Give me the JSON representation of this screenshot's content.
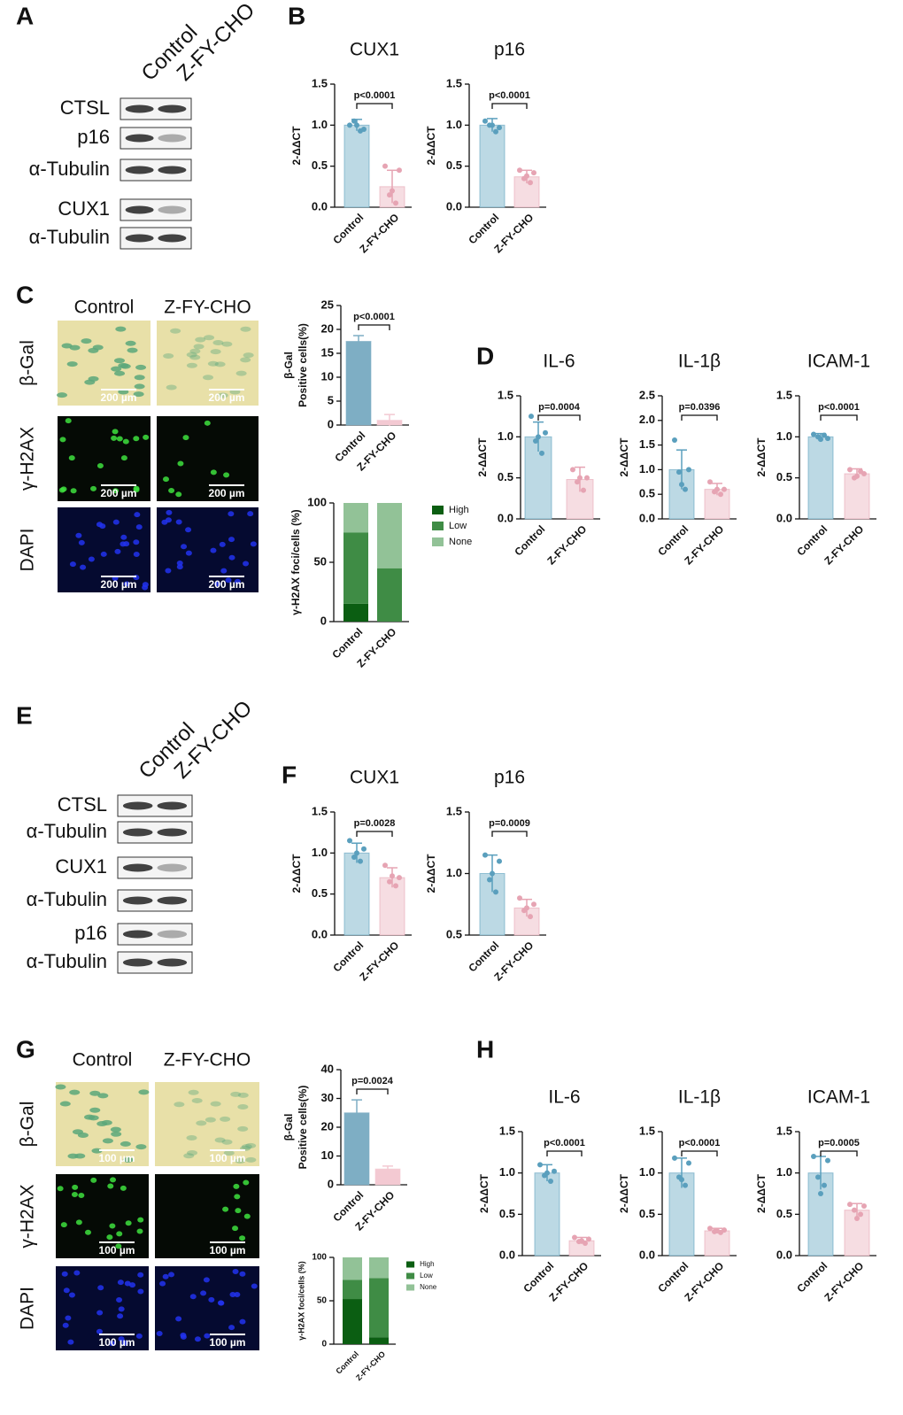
{
  "panel_labels": [
    "A",
    "B",
    "C",
    "D",
    "E",
    "F",
    "G",
    "H"
  ],
  "blots": [
    {
      "columns": [
        "Control",
        "Z-FY-CHO"
      ],
      "rows": [
        "CTSL",
        "p16",
        "α-Tubulin",
        "CUX1",
        "α-Tubulin"
      ]
    },
    {
      "columns": [
        "Control",
        "Z-FY-CHO"
      ],
      "rows": [
        "CTSL",
        "α-Tubulin",
        "CUX1",
        "α-Tubulin",
        "p16",
        "α-Tubulin"
      ]
    }
  ],
  "micrographs": [
    {
      "columns": [
        "Control",
        "Z-FY-CHO"
      ],
      "rows": [
        "β-Gal",
        "γ-H2AX",
        "DAPI"
      ],
      "scale_bar": "200 µm"
    },
    {
      "columns": [
        "Control",
        "Z-FY-CHO"
      ],
      "rows": [
        "β-Gal",
        "γ-H2AX",
        "DAPI"
      ],
      "scale_bar": "100 µm"
    }
  ],
  "chart_data": [
    {
      "type": "bar",
      "title": "CUX1",
      "ylabel": [
        "2-ΔΔCT"
      ],
      "categories": [
        "Control",
        "Z-FY-CHO"
      ],
      "values": [
        1.0,
        0.25
      ],
      "errors": [
        0.07,
        0.2
      ],
      "points": [
        [
          1.0,
          0.95,
          1.05,
          0.93,
          1.0
        ],
        [
          0.5,
          0.45,
          0.15,
          0.05,
          0.2
        ]
      ],
      "colors": [
        "#bcd9e4",
        "#f6dde2"
      ],
      "point_colors": [
        "#5a9fbd",
        "#e6a4b3"
      ],
      "ylim": [
        0,
        1.5
      ],
      "yticks": [
        {
          "value": 0,
          "label": "0.0"
        },
        0.5,
        {
          "value": 1,
          "label": "1.0"
        },
        1.5
      ],
      "annotation": "p<0.0001"
    },
    {
      "type": "bar",
      "title": "p16",
      "ylabel": [
        "2-ΔΔCT"
      ],
      "categories": [
        "Control",
        "Z-FY-CHO"
      ],
      "values": [
        1.0,
        0.37
      ],
      "errors": [
        0.08,
        0.08
      ],
      "points": [
        [
          1.05,
          0.97,
          1.0,
          0.92,
          1.0
        ],
        [
          0.45,
          0.42,
          0.35,
          0.3,
          0.38
        ]
      ],
      "colors": [
        "#bcd9e4",
        "#f6dde2"
      ],
      "point_colors": [
        "#5a9fbd",
        "#e6a4b3"
      ],
      "ylim": [
        0,
        1.5
      ],
      "yticks": [
        {
          "value": 0,
          "label": "0.0"
        },
        0.5,
        {
          "value": 1,
          "label": "1.0"
        },
        1.5
      ],
      "annotation": "p<0.0001"
    },
    {
      "type": "bar",
      "ylabel": [
        "β-Gal",
        "Positive cells(%)"
      ],
      "categories": [
        "Control",
        "Z-FY-CHO"
      ],
      "values": [
        17.5,
        1.0
      ],
      "errors": [
        1.2,
        1.2
      ],
      "colors": [
        "#7eaec4",
        "#f3c9d2"
      ],
      "ylim": [
        0,
        25
      ],
      "yticks": [
        0,
        5,
        10,
        15,
        20,
        25
      ],
      "annotation": "p<0.0001"
    },
    {
      "type": "stacked_bar",
      "ylabel": [
        "γ-H2AX foci/cells (%)"
      ],
      "categories": [
        "Control",
        "Z-FY-CHO"
      ],
      "series": [
        {
          "name": "High",
          "color": "#0b5e12",
          "values": [
            15,
            0
          ]
        },
        {
          "name": "Low",
          "color": "#3f8c45",
          "values": [
            60,
            45
          ]
        },
        {
          "name": "None",
          "color": "#92c297",
          "values": [
            25,
            55
          ]
        }
      ],
      "ylim": [
        0,
        100
      ],
      "yticks": [
        0,
        50,
        100
      ],
      "legend": "right"
    },
    {
      "type": "bar",
      "title": "IL-6",
      "ylabel": [
        "2-ΔΔCT"
      ],
      "categories": [
        "Control",
        "Z-FY-CHO"
      ],
      "values": [
        1.0,
        0.48
      ],
      "errors": [
        0.18,
        0.15
      ],
      "points": [
        [
          1.25,
          1.05,
          0.95,
          0.8,
          1.0
        ],
        [
          0.6,
          0.5,
          0.45,
          0.35,
          0.5
        ]
      ],
      "colors": [
        "#bcd9e4",
        "#f6dde2"
      ],
      "point_colors": [
        "#5a9fbd",
        "#e6a4b3"
      ],
      "ylim": [
        0,
        1.5
      ],
      "yticks": [
        {
          "value": 0,
          "label": "0.0"
        },
        0.5,
        {
          "value": 1,
          "label": "1.0"
        },
        1.5
      ],
      "annotation": "p=0.0004"
    },
    {
      "type": "bar",
      "title": "IL-1β",
      "ylabel": [
        "2-ΔΔCT"
      ],
      "categories": [
        "Control",
        "Z-FY-CHO"
      ],
      "values": [
        1.0,
        0.6
      ],
      "errors": [
        0.4,
        0.12
      ],
      "points": [
        [
          1.6,
          1.0,
          0.95,
          0.6,
          0.7
        ],
        [
          0.75,
          0.6,
          0.55,
          0.5,
          0.6
        ]
      ],
      "colors": [
        "#bcd9e4",
        "#f6dde2"
      ],
      "point_colors": [
        "#5a9fbd",
        "#e6a4b3"
      ],
      "ylim": [
        0,
        2.5
      ],
      "yticks": [
        {
          "value": 0,
          "label": "0.0"
        },
        0.5,
        {
          "value": 1,
          "label": "1.0"
        },
        1.5,
        {
          "value": 2,
          "label": "2.0"
        },
        2.5
      ],
      "annotation": "p=0.0396"
    },
    {
      "type": "bar",
      "title": "ICAM-1",
      "ylabel": [
        "2-ΔΔCT"
      ],
      "categories": [
        "Control",
        "Z-FY-CHO"
      ],
      "values": [
        1.0,
        0.55
      ],
      "errors": [
        0.04,
        0.06
      ],
      "points": [
        [
          1.03,
          0.98,
          1.0,
          1.02,
          0.97
        ],
        [
          0.6,
          0.55,
          0.5,
          0.58,
          0.52
        ]
      ],
      "colors": [
        "#bcd9e4",
        "#f6dde2"
      ],
      "point_colors": [
        "#5a9fbd",
        "#e6a4b3"
      ],
      "ylim": [
        0,
        1.5
      ],
      "yticks": [
        {
          "value": 0,
          "label": "0.0"
        },
        0.5,
        {
          "value": 1,
          "label": "1.0"
        },
        1.5
      ],
      "annotation": "p<0.0001"
    },
    {
      "type": "bar",
      "title": "CUX1",
      "ylabel": [
        "2-ΔΔCT"
      ],
      "categories": [
        "Control",
        "Z-FY-CHO"
      ],
      "values": [
        1.0,
        0.7
      ],
      "errors": [
        0.12,
        0.12
      ],
      "points": [
        [
          1.15,
          1.05,
          0.95,
          0.9,
          1.0
        ],
        [
          0.85,
          0.7,
          0.65,
          0.6,
          0.72
        ]
      ],
      "colors": [
        "#bcd9e4",
        "#f6dde2"
      ],
      "point_colors": [
        "#5a9fbd",
        "#e6a4b3"
      ],
      "ylim": [
        0,
        1.5
      ],
      "yticks": [
        {
          "value": 0,
          "label": "0.0"
        },
        0.5,
        {
          "value": 1,
          "label": "1.0"
        },
        1.5
      ],
      "annotation": "p=0.0028"
    },
    {
      "type": "bar",
      "title": "p16",
      "ylabel": [
        "2-ΔΔCT"
      ],
      "categories": [
        "Control",
        "Z-FY-CHO"
      ],
      "values": [
        1.0,
        0.72
      ],
      "errors": [
        0.15,
        0.07
      ],
      "points": [
        [
          1.15,
          1.1,
          0.95,
          0.85,
          1.0
        ],
        [
          0.8,
          0.75,
          0.7,
          0.65,
          0.72
        ]
      ],
      "colors": [
        "#bcd9e4",
        "#f6dde2"
      ],
      "point_colors": [
        "#5a9fbd",
        "#e6a4b3"
      ],
      "ylim": [
        0.5,
        1.5
      ],
      "yticks": [
        0.5,
        {
          "value": 1,
          "label": "1.0"
        },
        1.5
      ],
      "annotation": "p=0.0009"
    },
    {
      "type": "bar",
      "ylabel": [
        "β-Gal",
        "Positive cells(%)"
      ],
      "categories": [
        "Control",
        "Z-FY-CHO"
      ],
      "values": [
        25,
        5.5
      ],
      "errors": [
        4.5,
        1
      ],
      "colors": [
        "#7eaec4",
        "#f3c9d2"
      ],
      "ylim": [
        0,
        40
      ],
      "yticks": [
        0,
        10,
        20,
        30,
        40
      ],
      "annotation": "p=0.0024"
    },
    {
      "type": "stacked_bar",
      "ylabel": [
        "γ-H2AX foci/cells (%)"
      ],
      "categories": [
        "Control",
        "Z-FY-CHO"
      ],
      "series": [
        {
          "name": "High",
          "color": "#0b5e12",
          "values": [
            52,
            8
          ]
        },
        {
          "name": "Low",
          "color": "#3f8c45",
          "values": [
            22,
            68
          ]
        },
        {
          "name": "None",
          "color": "#92c297",
          "values": [
            26,
            24
          ]
        }
      ],
      "ylim": [
        0,
        100
      ],
      "yticks": [
        0,
        50,
        100
      ],
      "legend": "right"
    },
    {
      "type": "bar",
      "title": "IL-6",
      "ylabel": [
        "2-ΔΔCT"
      ],
      "categories": [
        "Control",
        "Z-FY-CHO"
      ],
      "values": [
        1.0,
        0.18
      ],
      "errors": [
        0.1,
        0.04
      ],
      "points": [
        [
          1.1,
          1.02,
          0.97,
          0.9,
          1.0
        ],
        [
          0.22,
          0.2,
          0.17,
          0.15,
          0.18
        ]
      ],
      "colors": [
        "#bcd9e4",
        "#f6dde2"
      ],
      "point_colors": [
        "#5a9fbd",
        "#e6a4b3"
      ],
      "ylim": [
        0,
        1.5
      ],
      "yticks": [
        {
          "value": 0,
          "label": "0.0"
        },
        0.5,
        {
          "value": 1,
          "label": "1.0"
        },
        1.5
      ],
      "annotation": "p<0.0001"
    },
    {
      "type": "bar",
      "title": "IL-1β",
      "ylabel": [
        "2-ΔΔCT"
      ],
      "categories": [
        "Control",
        "Z-FY-CHO"
      ],
      "values": [
        1.0,
        0.3
      ],
      "errors": [
        0.18,
        0.03
      ],
      "points": [
        [
          1.18,
          1.12,
          0.95,
          0.85,
          0.92
        ],
        [
          0.33,
          0.31,
          0.29,
          0.28,
          0.3
        ]
      ],
      "colors": [
        "#bcd9e4",
        "#f6dde2"
      ],
      "point_colors": [
        "#5a9fbd",
        "#e6a4b3"
      ],
      "ylim": [
        0,
        1.5
      ],
      "yticks": [
        {
          "value": 0,
          "label": "0.0"
        },
        0.5,
        {
          "value": 1,
          "label": "1.0"
        },
        1.5
      ],
      "annotation": "p<0.0001"
    },
    {
      "type": "bar",
      "title": "ICAM-1",
      "ylabel": [
        "2-ΔΔCT"
      ],
      "categories": [
        "Control",
        "Z-FY-CHO"
      ],
      "values": [
        1.0,
        0.55
      ],
      "errors": [
        0.2,
        0.08
      ],
      "points": [
        [
          1.2,
          1.15,
          0.95,
          0.85,
          0.75
        ],
        [
          0.62,
          0.6,
          0.55,
          0.5,
          0.45
        ]
      ],
      "colors": [
        "#bcd9e4",
        "#f6dde2"
      ],
      "point_colors": [
        "#5a9fbd",
        "#e6a4b3"
      ],
      "ylim": [
        0,
        1.5
      ],
      "yticks": [
        {
          "value": 0,
          "label": "0.0"
        },
        0.5,
        {
          "value": 1,
          "label": "1.0"
        },
        1.5
      ],
      "annotation": "p=0.0005"
    }
  ]
}
